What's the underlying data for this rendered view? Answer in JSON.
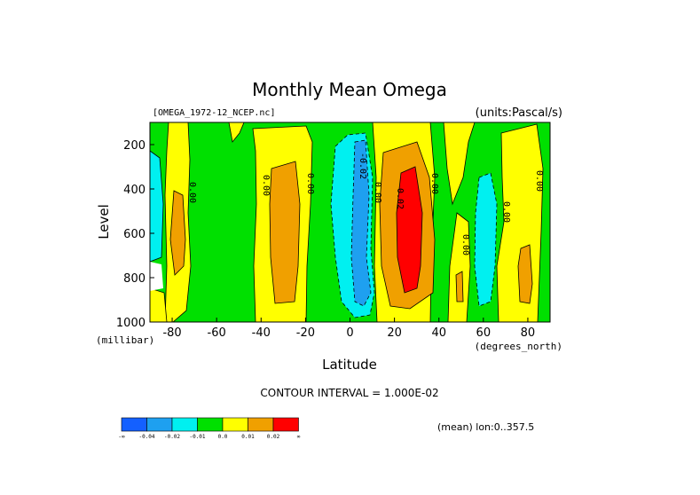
{
  "chart_data": {
    "type": "heatmap",
    "title": "Monthly Mean Omega",
    "file_label": "[OMEGA_1972-12_NCEP.nc]",
    "units_label": "(units:Pascal/s)",
    "xlabel": "Latitude",
    "x_unit": "(degrees_north)",
    "ylabel": "Level",
    "y_unit": "(millibar)",
    "x_ticks": [
      "-80",
      "-60",
      "-40",
      "-20",
      "0",
      "20",
      "40",
      "60",
      "80"
    ],
    "x_tick_values": [
      -80,
      -60,
      -40,
      -20,
      0,
      20,
      40,
      60,
      80
    ],
    "y_ticks": [
      "200",
      "400",
      "600",
      "800",
      "1000"
    ],
    "y_tick_values": [
      200,
      400,
      600,
      800,
      1000
    ],
    "xlim": [
      -90,
      90
    ],
    "ylim": [
      1000,
      100
    ],
    "contour_interval": "CONTOUR INTERVAL = 1.000E-02",
    "contour_labels": [
      "0.00",
      "0.00",
      "0.00",
      "-0.02",
      "0.00",
      "0.02",
      "0.00",
      "0.00",
      "0.00",
      "0.00"
    ],
    "colorbar_labels": [
      "-∞",
      "-0.04",
      "-0.02",
      "-0.01",
      "0.0",
      "0.01",
      "0.02",
      "∞"
    ],
    "colorbar_colors": [
      "#1460ff",
      "#1ea0f0",
      "#00f0f0",
      "#00e000",
      "#ffff00",
      "#f0a000",
      "#ff0000"
    ],
    "note": "(mean) lon:0..357.5",
    "bands": [
      {
        "lat": -88,
        "level": 450,
        "value": -0.015
      },
      {
        "lat": -78,
        "level": 650,
        "value": 0.012
      },
      {
        "lat": -60,
        "level": 550,
        "value": -0.005
      },
      {
        "lat": -30,
        "level": 600,
        "value": 0.012
      },
      {
        "lat": -5,
        "level": 500,
        "value": -0.015
      },
      {
        "lat": 5,
        "level": 550,
        "value": -0.025
      },
      {
        "lat": 25,
        "level": 550,
        "value": 0.025
      },
      {
        "lat": 40,
        "level": 500,
        "value": -0.005
      },
      {
        "lat": 60,
        "level": 600,
        "value": -0.015
      },
      {
        "lat": 85,
        "level": 700,
        "value": 0.012
      }
    ]
  }
}
